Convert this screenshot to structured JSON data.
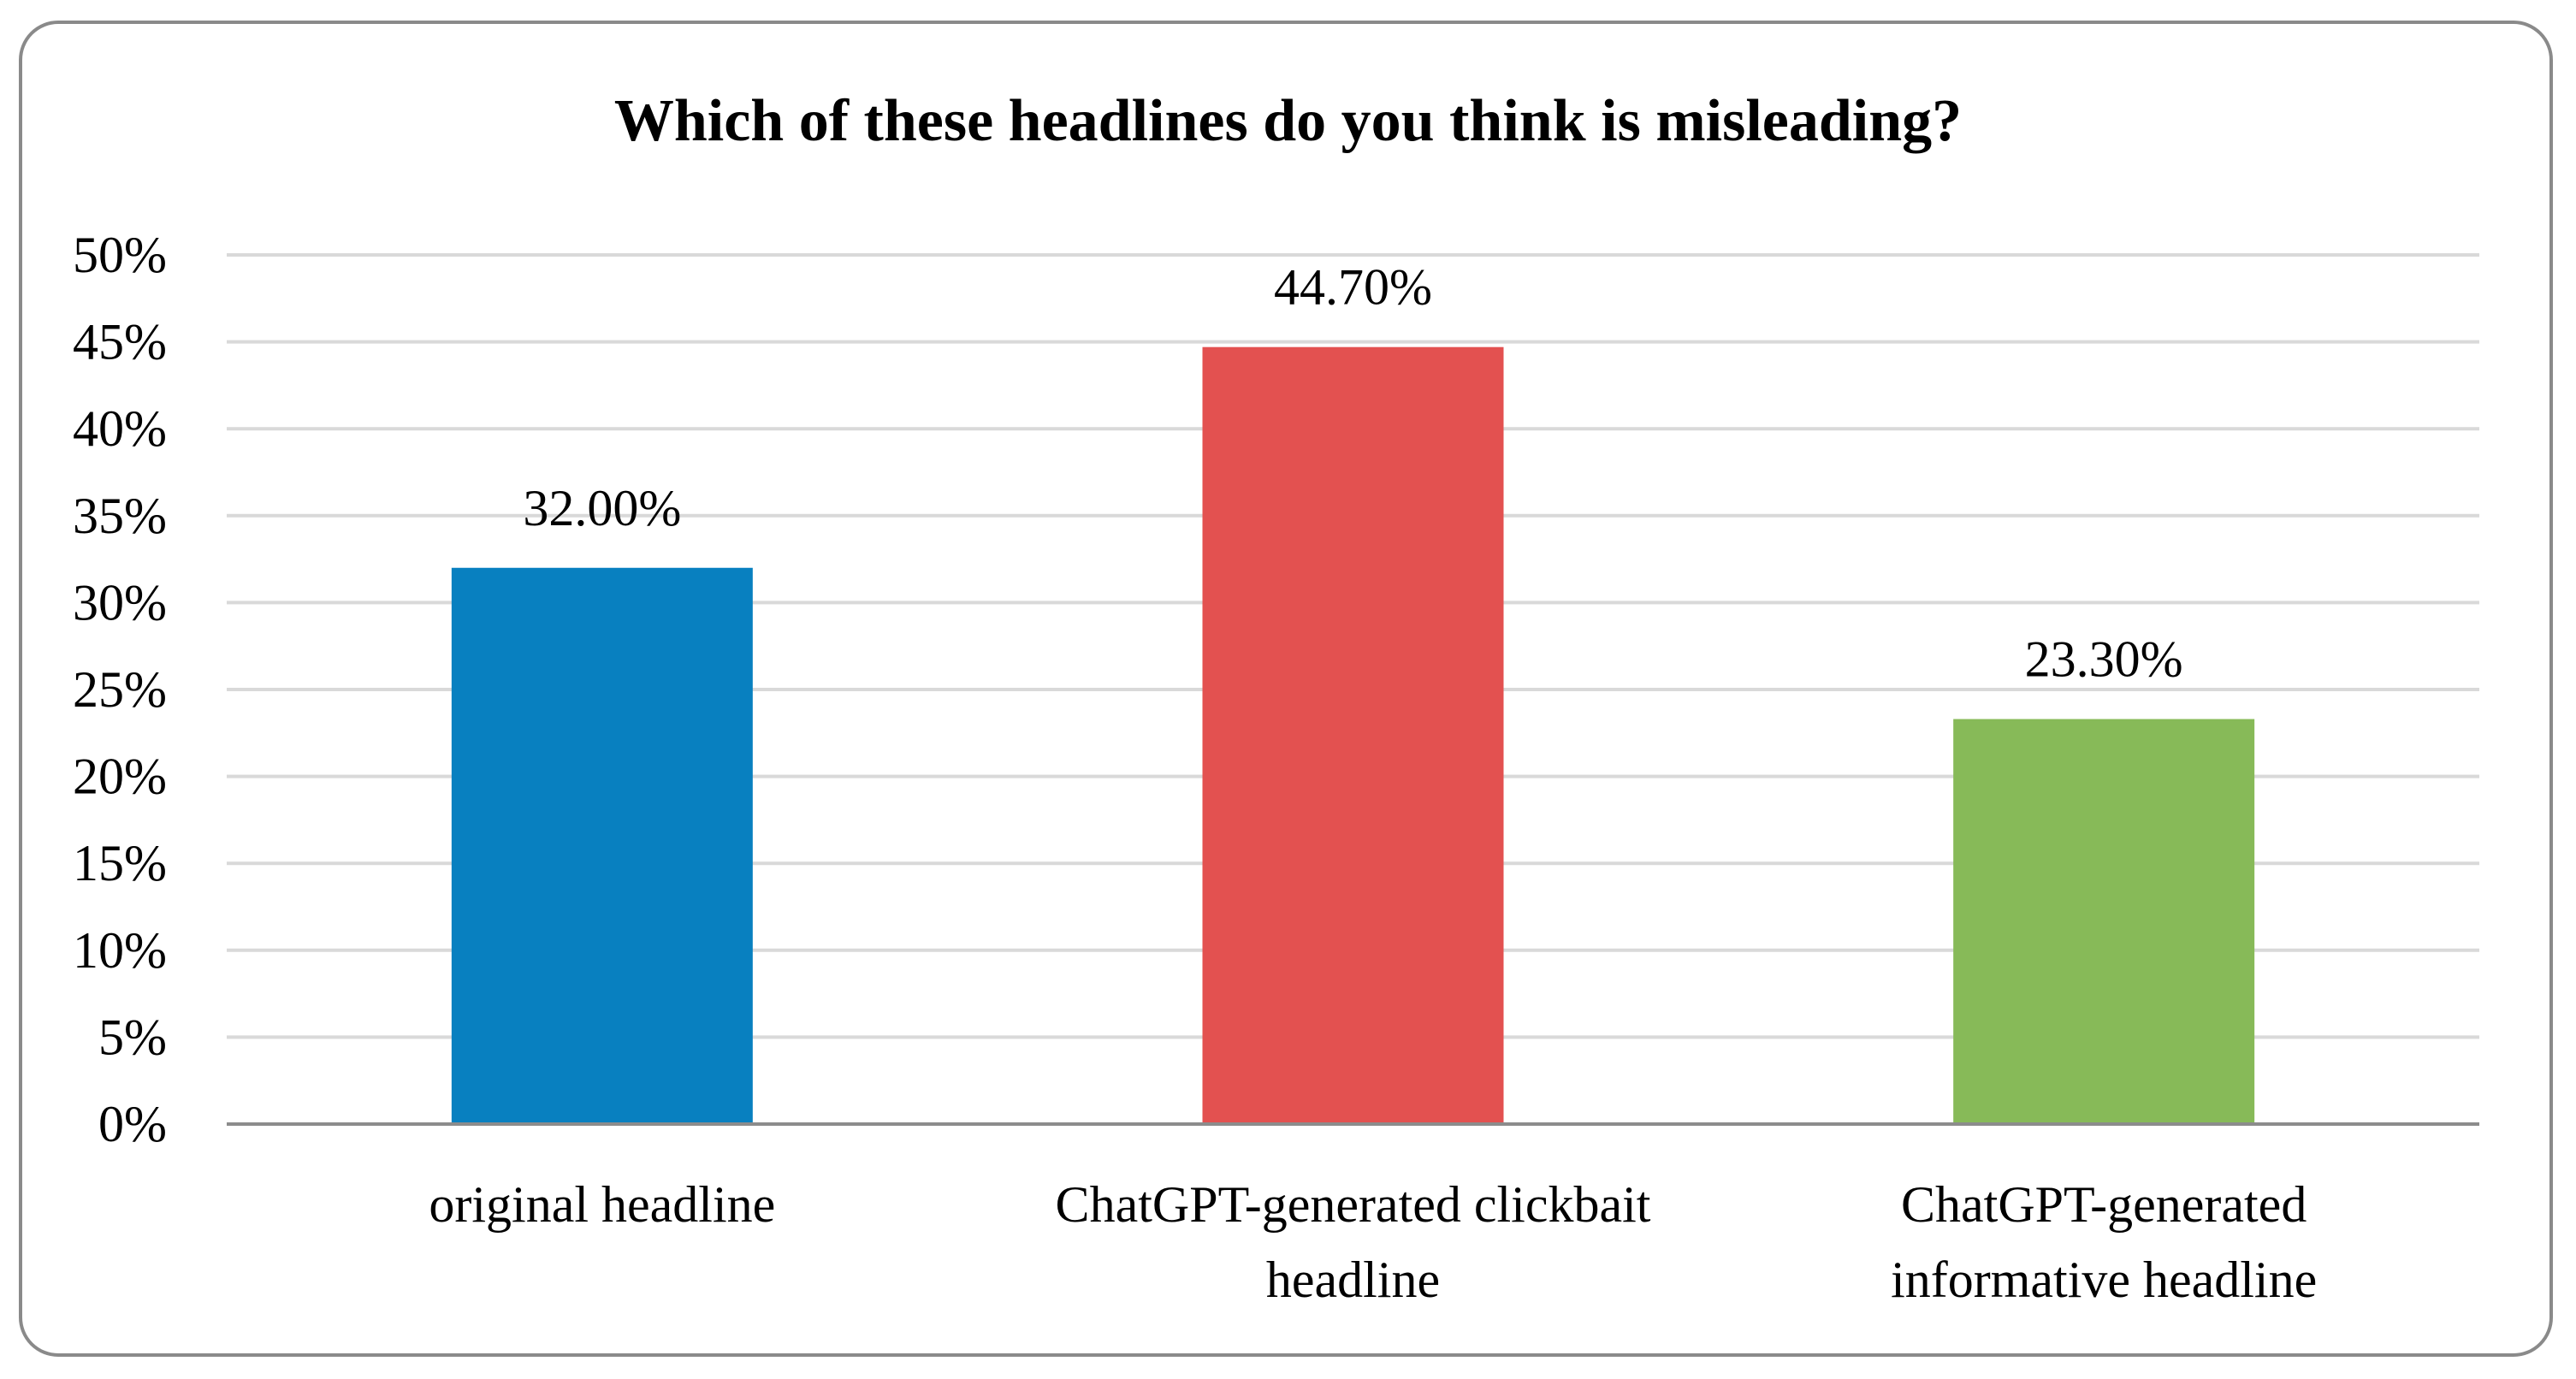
{
  "chart_data": {
    "type": "bar",
    "title": "Which of these headlines do you think is misleading?",
    "categories": [
      [
        "original headline"
      ],
      [
        "ChatGPT-generated clickbait",
        "headline"
      ],
      [
        "ChatGPT-generated",
        "informative headline"
      ]
    ],
    "values": [
      32.0,
      44.7,
      23.3
    ],
    "data_labels": [
      "32.00%",
      "44.70%",
      "23.30%"
    ],
    "bar_colors": [
      "#0880C0",
      "#E35150",
      "#87BA58"
    ],
    "yticks": [
      0,
      5,
      10,
      15,
      20,
      25,
      30,
      35,
      40,
      45,
      50
    ],
    "ytick_labels": [
      "0%",
      "5%",
      "10%",
      "15%",
      "20%",
      "25%",
      "30%",
      "35%",
      "40%",
      "45%",
      "50%"
    ],
    "ylim": [
      0,
      50
    ],
    "xlabel": "",
    "ylabel": "",
    "grid": true,
    "legend": "none"
  }
}
